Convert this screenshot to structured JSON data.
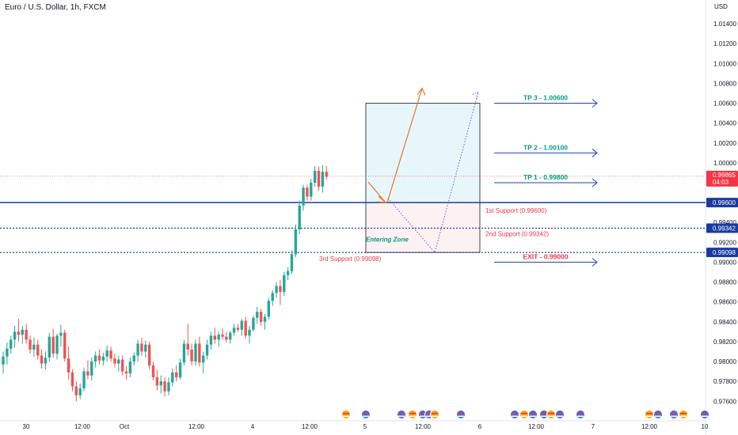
{
  "header": {
    "title": "Euro / U.S. Dollar, 1h, FXCM",
    "currency": "USD"
  },
  "colors": {
    "up": "#26a69a",
    "down": "#ef5350",
    "support_line": "#1a3a9e",
    "arrow_blue": "#1c46b0",
    "target_text": "#089981",
    "exit_text": "#f23645",
    "zone_text": "#089981",
    "projection": "#e9761f",
    "projection_dotted": "#6b5bd6",
    "current_price_badge": "#f23645"
  },
  "chart_data": {
    "type": "candlestick",
    "symbol": "EURUSD",
    "timeframe": "1h",
    "y_axis": {
      "unit": "USD",
      "range": [
        0.9748,
        1.0158
      ],
      "tick_labels": [
        "1.01400",
        "1.01200",
        "1.01000",
        "1.00800",
        "1.00600",
        "1.00400",
        "1.00200",
        "1.00000",
        "0.99600",
        "0.99400",
        "0.99200",
        "0.99000",
        "0.98800",
        "0.98600",
        "0.98400",
        "0.98200",
        "0.98000",
        "0.97800",
        "0.97600"
      ]
    },
    "x_axis": {
      "tick_labels": [
        "30",
        "12:00",
        "Oct",
        "12:00",
        "4",
        "12:00",
        "5",
        "12:00",
        "6",
        "12:00",
        "7",
        "12:00",
        "10"
      ]
    },
    "candles": [
      [
        0.9797,
        0.981,
        0.9788,
        0.9805
      ],
      [
        0.9805,
        0.9819,
        0.9797,
        0.9813
      ],
      [
        0.9813,
        0.9826,
        0.9808,
        0.9822
      ],
      [
        0.9822,
        0.9836,
        0.9814,
        0.983
      ],
      [
        0.983,
        0.9843,
        0.982,
        0.9827
      ],
      [
        0.9827,
        0.9836,
        0.9818,
        0.9832
      ],
      [
        0.9832,
        0.9838,
        0.9818,
        0.9822
      ],
      [
        0.9822,
        0.9826,
        0.9808,
        0.9812
      ],
      [
        0.9812,
        0.9824,
        0.9805,
        0.9817
      ],
      [
        0.9817,
        0.9822,
        0.9802,
        0.9806
      ],
      [
        0.9806,
        0.9812,
        0.9793,
        0.9798
      ],
      [
        0.9798,
        0.981,
        0.9792,
        0.9804
      ],
      [
        0.9804,
        0.9829,
        0.98,
        0.9825
      ],
      [
        0.9825,
        0.9833,
        0.9804,
        0.9808
      ],
      [
        0.9808,
        0.9828,
        0.9802,
        0.9826
      ],
      [
        0.9826,
        0.9837,
        0.9815,
        0.9829
      ],
      [
        0.9829,
        0.9832,
        0.98,
        0.9803
      ],
      [
        0.9803,
        0.9815,
        0.9782,
        0.9789
      ],
      [
        0.9789,
        0.9792,
        0.977,
        0.9775
      ],
      [
        0.9775,
        0.978,
        0.976,
        0.9766
      ],
      [
        0.9766,
        0.9778,
        0.9762,
        0.9773
      ],
      [
        0.9773,
        0.9794,
        0.977,
        0.979
      ],
      [
        0.979,
        0.9801,
        0.9782,
        0.9786
      ],
      [
        0.9786,
        0.9804,
        0.9781,
        0.98
      ],
      [
        0.98,
        0.981,
        0.9794,
        0.9806
      ],
      [
        0.9806,
        0.9812,
        0.9797,
        0.9801
      ],
      [
        0.9801,
        0.9809,
        0.9796,
        0.9805
      ],
      [
        0.9805,
        0.9816,
        0.98,
        0.9811
      ],
      [
        0.9811,
        0.9815,
        0.98,
        0.9803
      ],
      [
        0.9803,
        0.9808,
        0.9794,
        0.9798
      ],
      [
        0.9798,
        0.9806,
        0.979,
        0.9802
      ],
      [
        0.9802,
        0.9806,
        0.9786,
        0.979
      ],
      [
        0.979,
        0.9795,
        0.9782,
        0.9788
      ],
      [
        0.9788,
        0.9804,
        0.9784,
        0.98
      ],
      [
        0.98,
        0.9809,
        0.9796,
        0.9806
      ],
      [
        0.9806,
        0.9822,
        0.98,
        0.9818
      ],
      [
        0.9818,
        0.9824,
        0.9806,
        0.981
      ],
      [
        0.981,
        0.9821,
        0.9804,
        0.9817
      ],
      [
        0.9817,
        0.982,
        0.9792,
        0.9796
      ],
      [
        0.9796,
        0.98,
        0.9781,
        0.9784
      ],
      [
        0.9784,
        0.9792,
        0.9771,
        0.9776
      ],
      [
        0.9776,
        0.9786,
        0.9768,
        0.978
      ],
      [
        0.978,
        0.9784,
        0.9765,
        0.977
      ],
      [
        0.977,
        0.9784,
        0.9766,
        0.9779
      ],
      [
        0.9779,
        0.9793,
        0.9775,
        0.9789
      ],
      [
        0.9789,
        0.9796,
        0.978,
        0.9784
      ],
      [
        0.9784,
        0.9803,
        0.9782,
        0.9799
      ],
      [
        0.9799,
        0.9822,
        0.9796,
        0.9818
      ],
      [
        0.9818,
        0.9838,
        0.9806,
        0.9812
      ],
      [
        0.9812,
        0.9818,
        0.9796,
        0.98
      ],
      [
        0.98,
        0.9822,
        0.9796,
        0.9818
      ],
      [
        0.9818,
        0.9825,
        0.9795,
        0.9799
      ],
      [
        0.9799,
        0.981,
        0.9788,
        0.9806
      ],
      [
        0.9806,
        0.9822,
        0.9802,
        0.9817
      ],
      [
        0.9817,
        0.983,
        0.9812,
        0.9826
      ],
      [
        0.9826,
        0.9834,
        0.9818,
        0.9822
      ],
      [
        0.9822,
        0.983,
        0.9815,
        0.9827
      ],
      [
        0.9827,
        0.9833,
        0.9822,
        0.9825
      ],
      [
        0.9825,
        0.983,
        0.9819,
        0.9822
      ],
      [
        0.9822,
        0.9831,
        0.9818,
        0.9829
      ],
      [
        0.9829,
        0.9838,
        0.9826,
        0.9834
      ],
      [
        0.9834,
        0.9838,
        0.983,
        0.9832
      ],
      [
        0.9832,
        0.9843,
        0.9826,
        0.9841
      ],
      [
        0.9841,
        0.9845,
        0.9823,
        0.9826
      ],
      [
        0.9826,
        0.9836,
        0.9818,
        0.9832
      ],
      [
        0.9832,
        0.9846,
        0.983,
        0.9844
      ],
      [
        0.9844,
        0.9855,
        0.9838,
        0.985
      ],
      [
        0.985,
        0.9853,
        0.9836,
        0.984
      ],
      [
        0.984,
        0.9848,
        0.9832,
        0.9845
      ],
      [
        0.9845,
        0.9864,
        0.9842,
        0.9861
      ],
      [
        0.9861,
        0.9872,
        0.9856,
        0.9869
      ],
      [
        0.9869,
        0.988,
        0.9864,
        0.9876
      ],
      [
        0.9876,
        0.9882,
        0.9857,
        0.987
      ],
      [
        0.987,
        0.989,
        0.9866,
        0.9887
      ],
      [
        0.9887,
        0.9895,
        0.9882,
        0.9891
      ],
      [
        0.9891,
        0.9912,
        0.9888,
        0.9908
      ],
      [
        0.9908,
        0.9938,
        0.9905,
        0.9933
      ],
      [
        0.9933,
        0.9962,
        0.9928,
        0.9957
      ],
      [
        0.9957,
        0.9978,
        0.9952,
        0.9975
      ],
      [
        0.9975,
        0.9978,
        0.9962,
        0.9966
      ],
      [
        0.9966,
        0.9984,
        0.9962,
        0.998
      ],
      [
        0.998,
        0.9997,
        0.9976,
        0.9992
      ],
      [
        0.9992,
        0.9996,
        0.9972,
        0.9976
      ],
      [
        0.9976,
        0.9998,
        0.997,
        0.9991
      ],
      [
        0.9991,
        0.9997,
        0.9983,
        0.9986
      ]
    ],
    "current_price": {
      "value": "0.99865",
      "countdown": "04:03"
    },
    "horizontal_levels": [
      {
        "name": "1st Support",
        "value": 0.996,
        "label": "0.99600",
        "style": "solid"
      },
      {
        "name": "2nd Support",
        "value": 0.99342,
        "label": "0.99342",
        "style": "dotted"
      },
      {
        "name": "3rd Support",
        "value": 0.99098,
        "label": "0.99098",
        "style": "dotted"
      }
    ],
    "targets": [
      {
        "label": "TP 3 - 1.00600",
        "value": 1.006
      },
      {
        "label": "TP 2 - 1.00100",
        "value": 1.001
      },
      {
        "label": "TP 1 - 0.99800",
        "value": 0.998
      },
      {
        "label": "EXIT - 0.99000",
        "value": 0.99
      }
    ],
    "annotations": {
      "support_1": "1st Support (0.99600)",
      "support_2": "2nd Support (0.99342)",
      "support_3": "3rd Support (0.99098)",
      "entering_zone": "Entering Zone"
    },
    "position_box": {
      "entry": 0.996,
      "target": 1.006,
      "stop": 0.99098
    },
    "projection_orange": [
      [
        0.996,
        "start"
      ],
      [
        1.0075,
        "end"
      ]
    ],
    "projection_dotted": [
      [
        0.99642,
        "start"
      ],
      [
        0.99098,
        "mid"
      ],
      [
        1.00712,
        "end"
      ]
    ]
  }
}
